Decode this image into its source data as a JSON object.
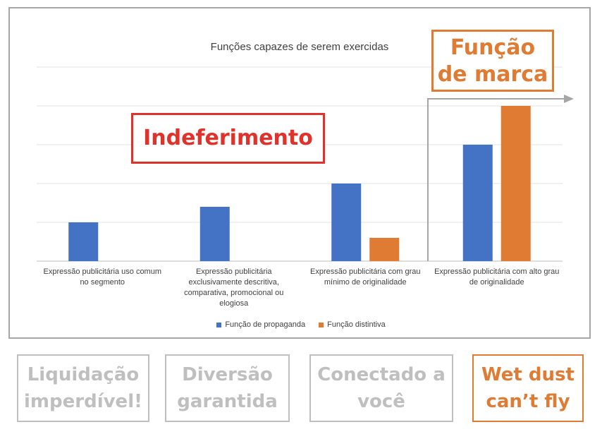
{
  "chart_data": {
    "type": "bar",
    "title": "Funções capazes de serem exercidas",
    "categories": [
      [
        "Expressão publicitária uso comum",
        "no segmento"
      ],
      [
        "Expressão publicitária",
        "exclusivamente descritiva,",
        "comparativa, promocional ou",
        "elogiosa"
      ],
      [
        "Expressão publicitária com grau",
        "mínimo de originalidade"
      ],
      [
        "Expressão publicitária com alto grau",
        "de originalidade"
      ]
    ],
    "series": [
      {
        "name": "Função de propaganda",
        "color": "#4472c4",
        "values": [
          1,
          1.4,
          2,
          3
        ]
      },
      {
        "name": "Função distintiva",
        "color": "#e07b33",
        "values": [
          0,
          0,
          0.6,
          4
        ]
      }
    ],
    "ylim": [
      0,
      5
    ],
    "grid": true,
    "legend": "bottom-center"
  },
  "callouts": {
    "indeferimento": "Indeferimento",
    "marca": [
      "Função",
      "de marca"
    ]
  },
  "tags": [
    {
      "lines": [
        "Liquidação",
        "imperdível!"
      ]
    },
    {
      "lines": [
        "Diversão",
        "garantida"
      ]
    },
    {
      "lines": [
        "Conectado a",
        "você"
      ]
    },
    {
      "lines": [
        "Wet dust",
        "can’t fly"
      ]
    }
  ],
  "colors": {
    "indeferimento": "#e0322b",
    "marca": "#e07b33",
    "muted": "#bfbfbf",
    "arrow": "#a6a6a6"
  }
}
